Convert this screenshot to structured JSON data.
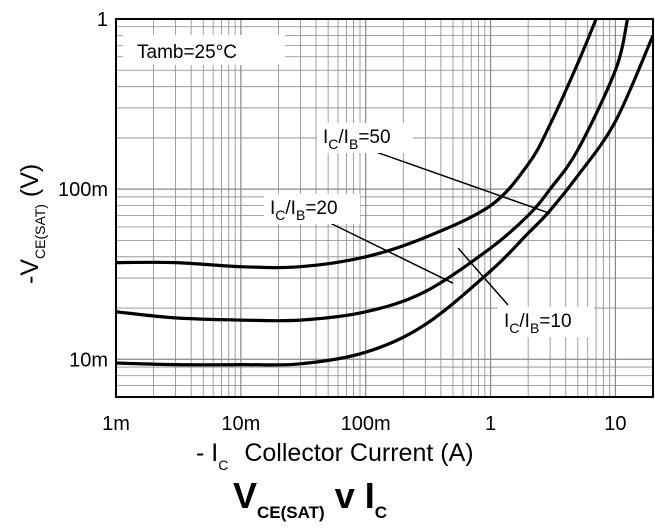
{
  "chart_data": {
    "type": "line",
    "title": {
      "main": "V",
      "sub1": "CE(SAT)",
      "mid": " v I",
      "sub2": "C"
    },
    "xlabel": {
      "prefix": "- I",
      "sub": "C",
      "rest": "Collector Current (A)"
    },
    "ylabel": {
      "prefix": "-V",
      "sub": "CE(SAT)",
      "rest": " (V)"
    },
    "x_scale": "log",
    "y_scale": "log",
    "xlim": [
      0.001,
      20
    ],
    "ylim": [
      0.006,
      1
    ],
    "x_ticks": [
      {
        "value": 0.001,
        "label": "1m"
      },
      {
        "value": 0.01,
        "label": "10m"
      },
      {
        "value": 0.1,
        "label": "100m"
      },
      {
        "value": 1,
        "label": "1"
      },
      {
        "value": 10,
        "label": "10"
      }
    ],
    "y_ticks": [
      {
        "value": 0.01,
        "label": "10m"
      },
      {
        "value": 0.1,
        "label": "100m"
      },
      {
        "value": 1,
        "label": "1"
      }
    ],
    "grid": true,
    "annotation": "Tamb=25°C",
    "series": [
      {
        "ic": "C",
        "ib": "B",
        "ratio": "=50",
        "x": [
          0.001,
          0.003,
          0.01,
          0.03,
          0.1,
          0.3,
          1,
          2,
          3,
          5,
          7
        ],
        "y": [
          0.037,
          0.037,
          0.035,
          0.035,
          0.04,
          0.052,
          0.08,
          0.14,
          0.24,
          0.55,
          1.0
        ]
      },
      {
        "ic": "C",
        "ib": "B",
        "ratio": "=20",
        "x": [
          0.001,
          0.003,
          0.01,
          0.03,
          0.1,
          0.3,
          1,
          2,
          3,
          5,
          10,
          12.5
        ],
        "y": [
          0.019,
          0.0175,
          0.017,
          0.017,
          0.019,
          0.025,
          0.045,
          0.07,
          0.1,
          0.17,
          0.5,
          1.0
        ]
      },
      {
        "ic": "C",
        "ib": "B",
        "ratio": "=10",
        "x": [
          0.001,
          0.003,
          0.01,
          0.03,
          0.1,
          0.3,
          1,
          2,
          3,
          5,
          10,
          20
        ],
        "y": [
          0.0095,
          0.0093,
          0.0093,
          0.0094,
          0.011,
          0.016,
          0.033,
          0.055,
          0.075,
          0.12,
          0.25,
          0.8
        ]
      }
    ]
  }
}
